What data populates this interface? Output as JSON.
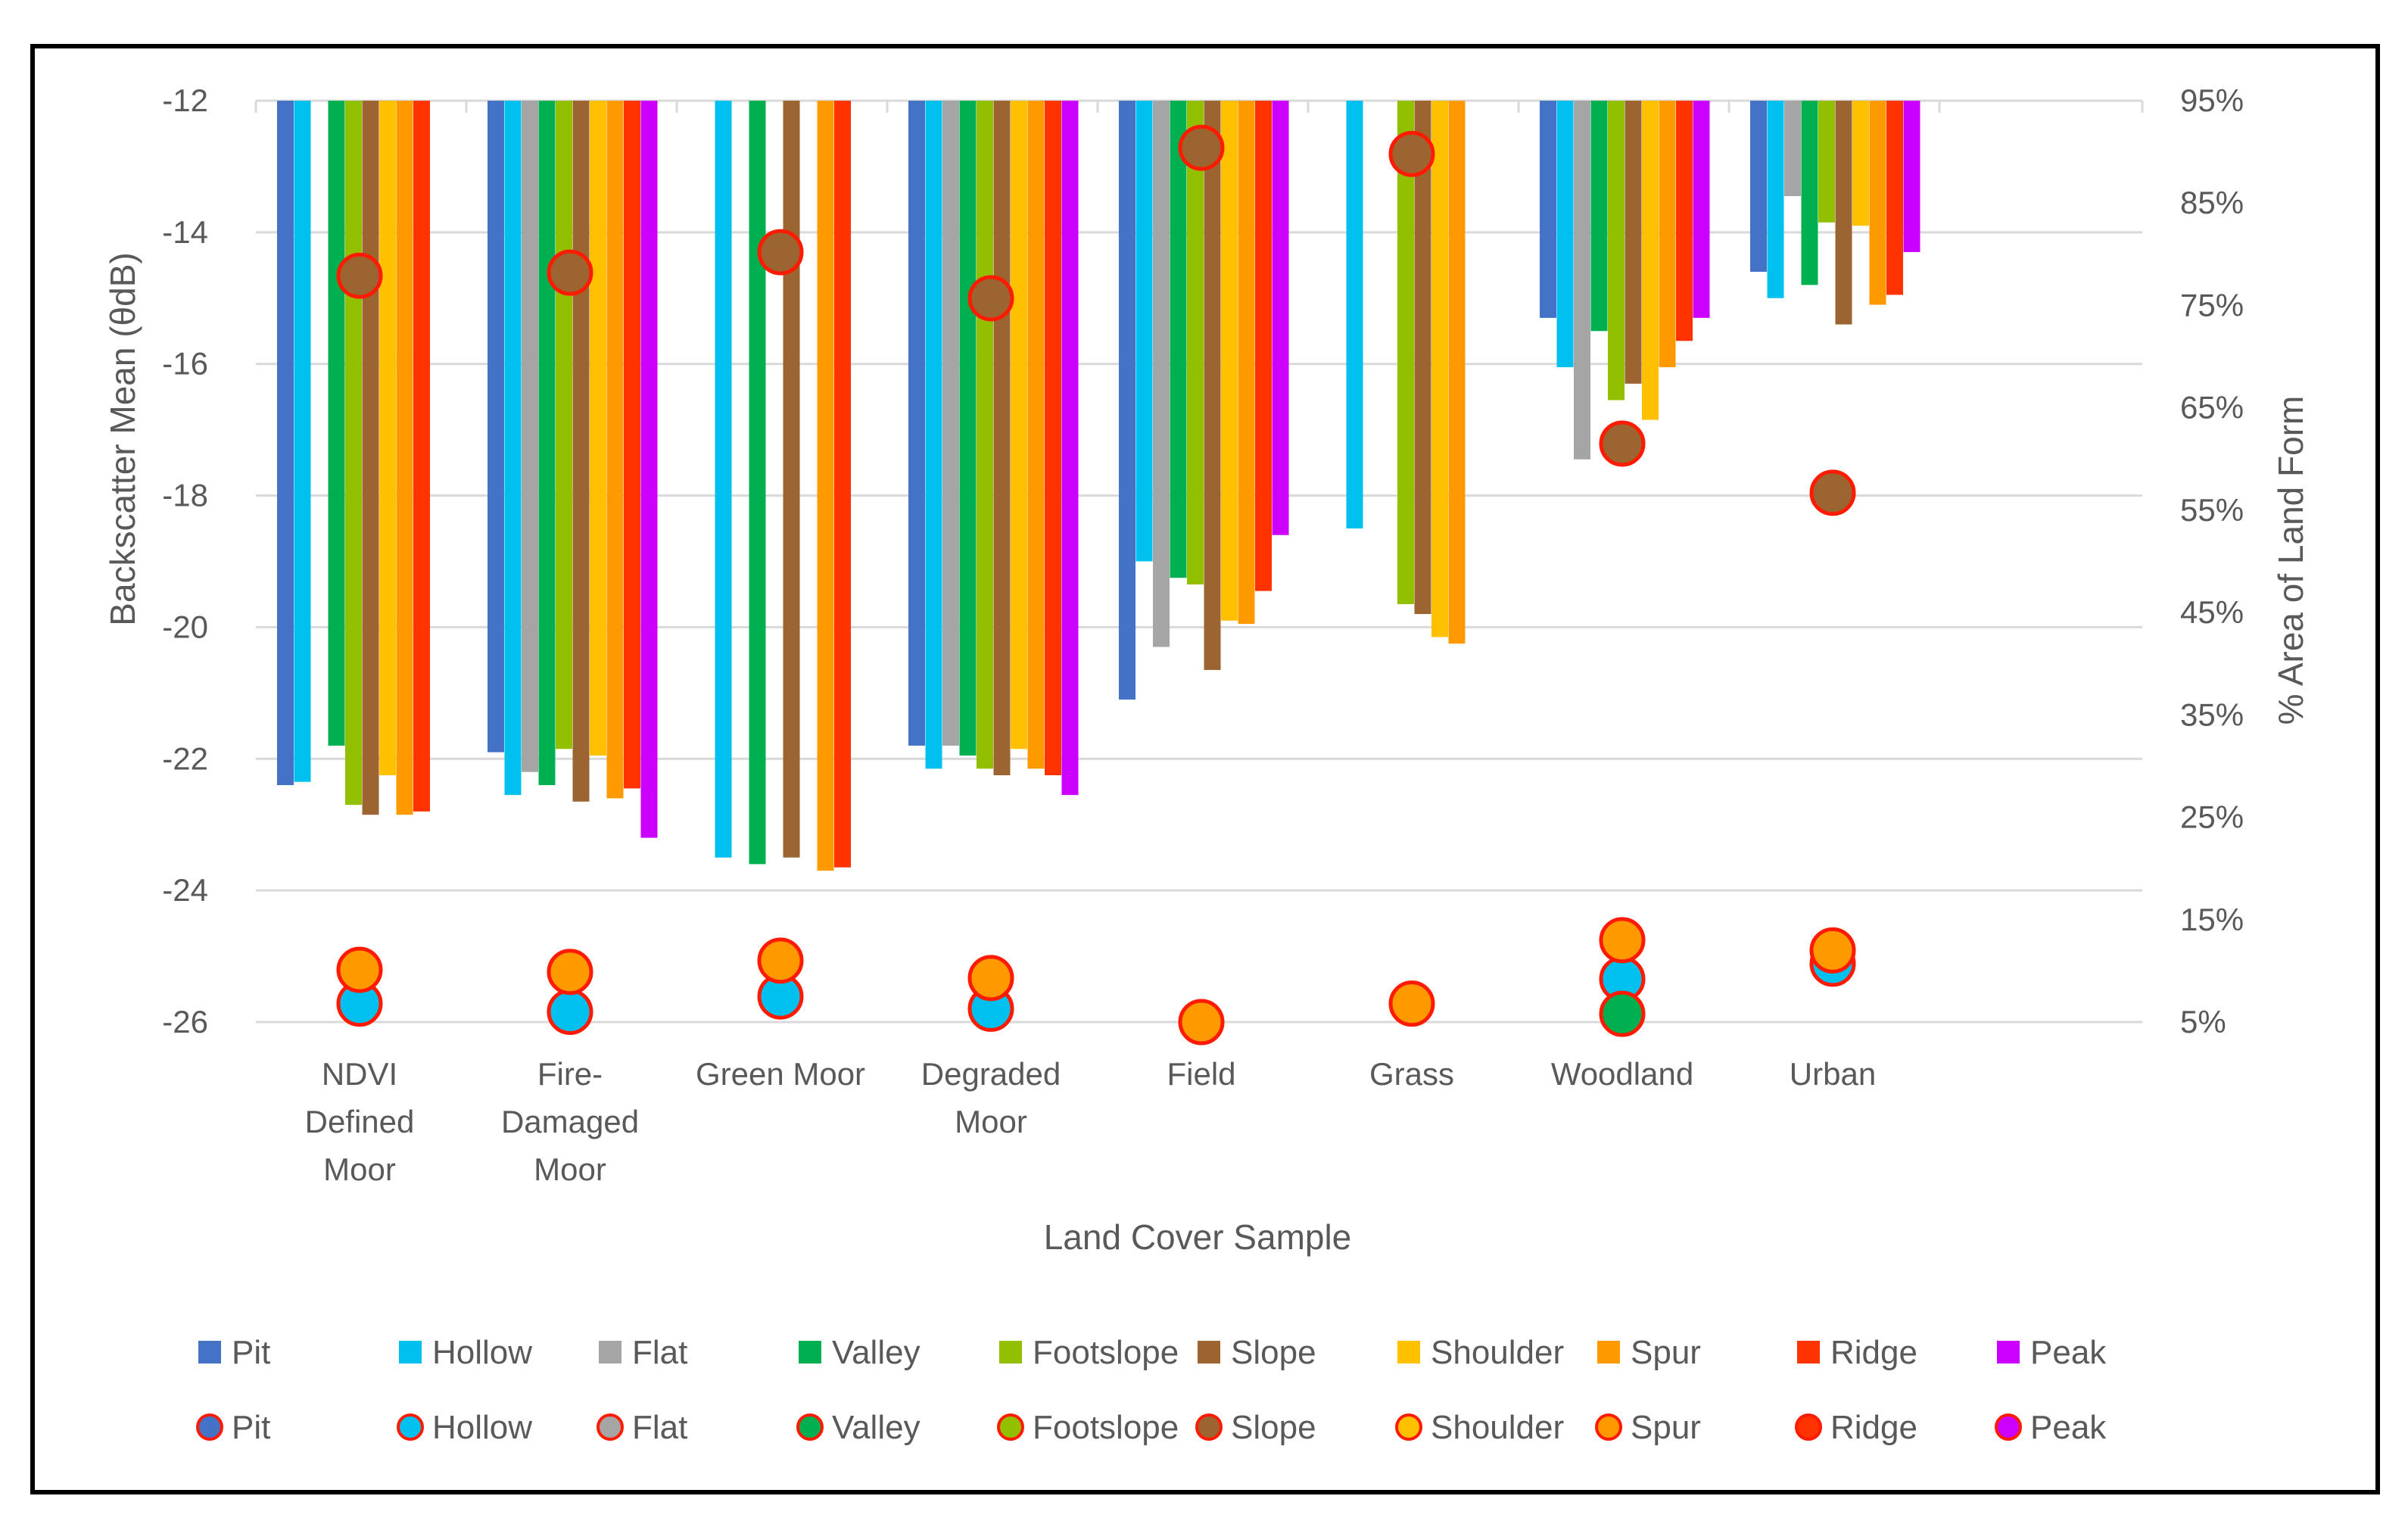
{
  "chart_data": {
    "type": "bar",
    "title": "",
    "xlabel": "Land Cover Sample",
    "ylabel": "Backscatter Mean (θdB)",
    "y2label": "% Area of Land Form",
    "ylim": [
      -26,
      -12
    ],
    "y2lim": [
      5,
      95
    ],
    "y_ticks": [
      "-12",
      "-14",
      "-16",
      "-18",
      "-20",
      "-22",
      "-24",
      "-26"
    ],
    "y2_ticks": [
      "95%",
      "85%",
      "75%",
      "65%",
      "55%",
      "45%",
      "35%",
      "25%",
      "15%",
      "5%"
    ],
    "gridlines": true,
    "categories": [
      [
        "NDVI",
        "Defined",
        "Moor"
      ],
      [
        "Fire-",
        "Damaged",
        "Moor"
      ],
      [
        "Green Moor"
      ],
      [
        "Degraded",
        "Moor"
      ],
      [
        "Field"
      ],
      [
        "Grass"
      ],
      [
        "Woodland"
      ],
      [
        "Urban"
      ]
    ],
    "series": [
      {
        "name": "Pit",
        "color": "#4472C4",
        "values": [
          -22.4,
          -21.9,
          null,
          -21.8,
          -21.1,
          null,
          -15.3,
          -14.6
        ]
      },
      {
        "name": "Hollow",
        "color": "#00C0F0",
        "values": [
          -22.35,
          -22.55,
          -23.5,
          -22.15,
          -19.0,
          -18.5,
          -16.05,
          -15.0
        ]
      },
      {
        "name": "Flat",
        "color": "#A5A5A5",
        "values": [
          null,
          -22.2,
          null,
          -21.8,
          -20.3,
          null,
          -17.45,
          -13.45
        ]
      },
      {
        "name": "Valley",
        "color": "#00B050",
        "values": [
          -21.8,
          -22.4,
          -23.6,
          -21.95,
          -19.25,
          null,
          -15.5,
          -14.8
        ]
      },
      {
        "name": "Footslope",
        "color": "#92C000",
        "values": [
          -22.7,
          -21.85,
          null,
          -22.15,
          -19.35,
          -19.65,
          -16.55,
          -13.85
        ]
      },
      {
        "name": "Slope",
        "color": "#9C6430",
        "values": [
          -22.85,
          -22.65,
          -23.5,
          -22.25,
          -20.65,
          -19.8,
          -16.3,
          -15.4
        ]
      },
      {
        "name": "Shoulder",
        "color": "#FFC000",
        "values": [
          -22.25,
          -21.95,
          null,
          -21.85,
          -19.9,
          -20.15,
          -16.85,
          -13.9
        ]
      },
      {
        "name": "Spur",
        "color": "#FF9900",
        "values": [
          -22.85,
          -22.6,
          -23.7,
          -22.15,
          -19.95,
          -20.25,
          -16.05,
          -15.1
        ]
      },
      {
        "name": "Ridge",
        "color": "#FF3300",
        "values": [
          -22.8,
          -22.45,
          -23.65,
          -22.25,
          -19.45,
          null,
          -15.65,
          -14.95
        ]
      },
      {
        "name": "Peak",
        "color": "#CC00FF",
        "values": [
          null,
          -23.2,
          null,
          -22.55,
          -18.6,
          null,
          -15.3,
          -14.3
        ]
      }
    ],
    "point_series": [
      {
        "name": "Pit",
        "color": "#4472C4",
        "values": []
      },
      {
        "name": "Hollow",
        "color": "#00C0F0",
        "values": [
          6.8,
          6.0,
          7.5,
          6.3,
          null,
          null,
          9.2,
          10.7
        ]
      },
      {
        "name": "Flat",
        "color": "#A5A5A5",
        "values": []
      },
      {
        "name": "Valley",
        "color": "#00B050",
        "values": [
          null,
          null,
          null,
          null,
          null,
          null,
          5.8,
          null
        ]
      },
      {
        "name": "Footslope",
        "color": "#92C000",
        "values": []
      },
      {
        "name": "Slope",
        "color": "#9C6430",
        "values": [
          77.9,
          78.2,
          80.2,
          75.7,
          90.4,
          89.8,
          61.5,
          56.7
        ]
      },
      {
        "name": "Shoulder",
        "color": "#FFC000",
        "values": []
      },
      {
        "name": "Spur",
        "color": "#FF9900",
        "values": [
          10.1,
          9.9,
          11.0,
          9.3,
          5.0,
          6.8,
          13.0,
          12.0
        ]
      },
      {
        "name": "Ridge",
        "color": "#FF3300",
        "values": []
      },
      {
        "name": "Peak",
        "color": "#CC00FF",
        "values": []
      }
    ],
    "legend_position": "bottom"
  }
}
